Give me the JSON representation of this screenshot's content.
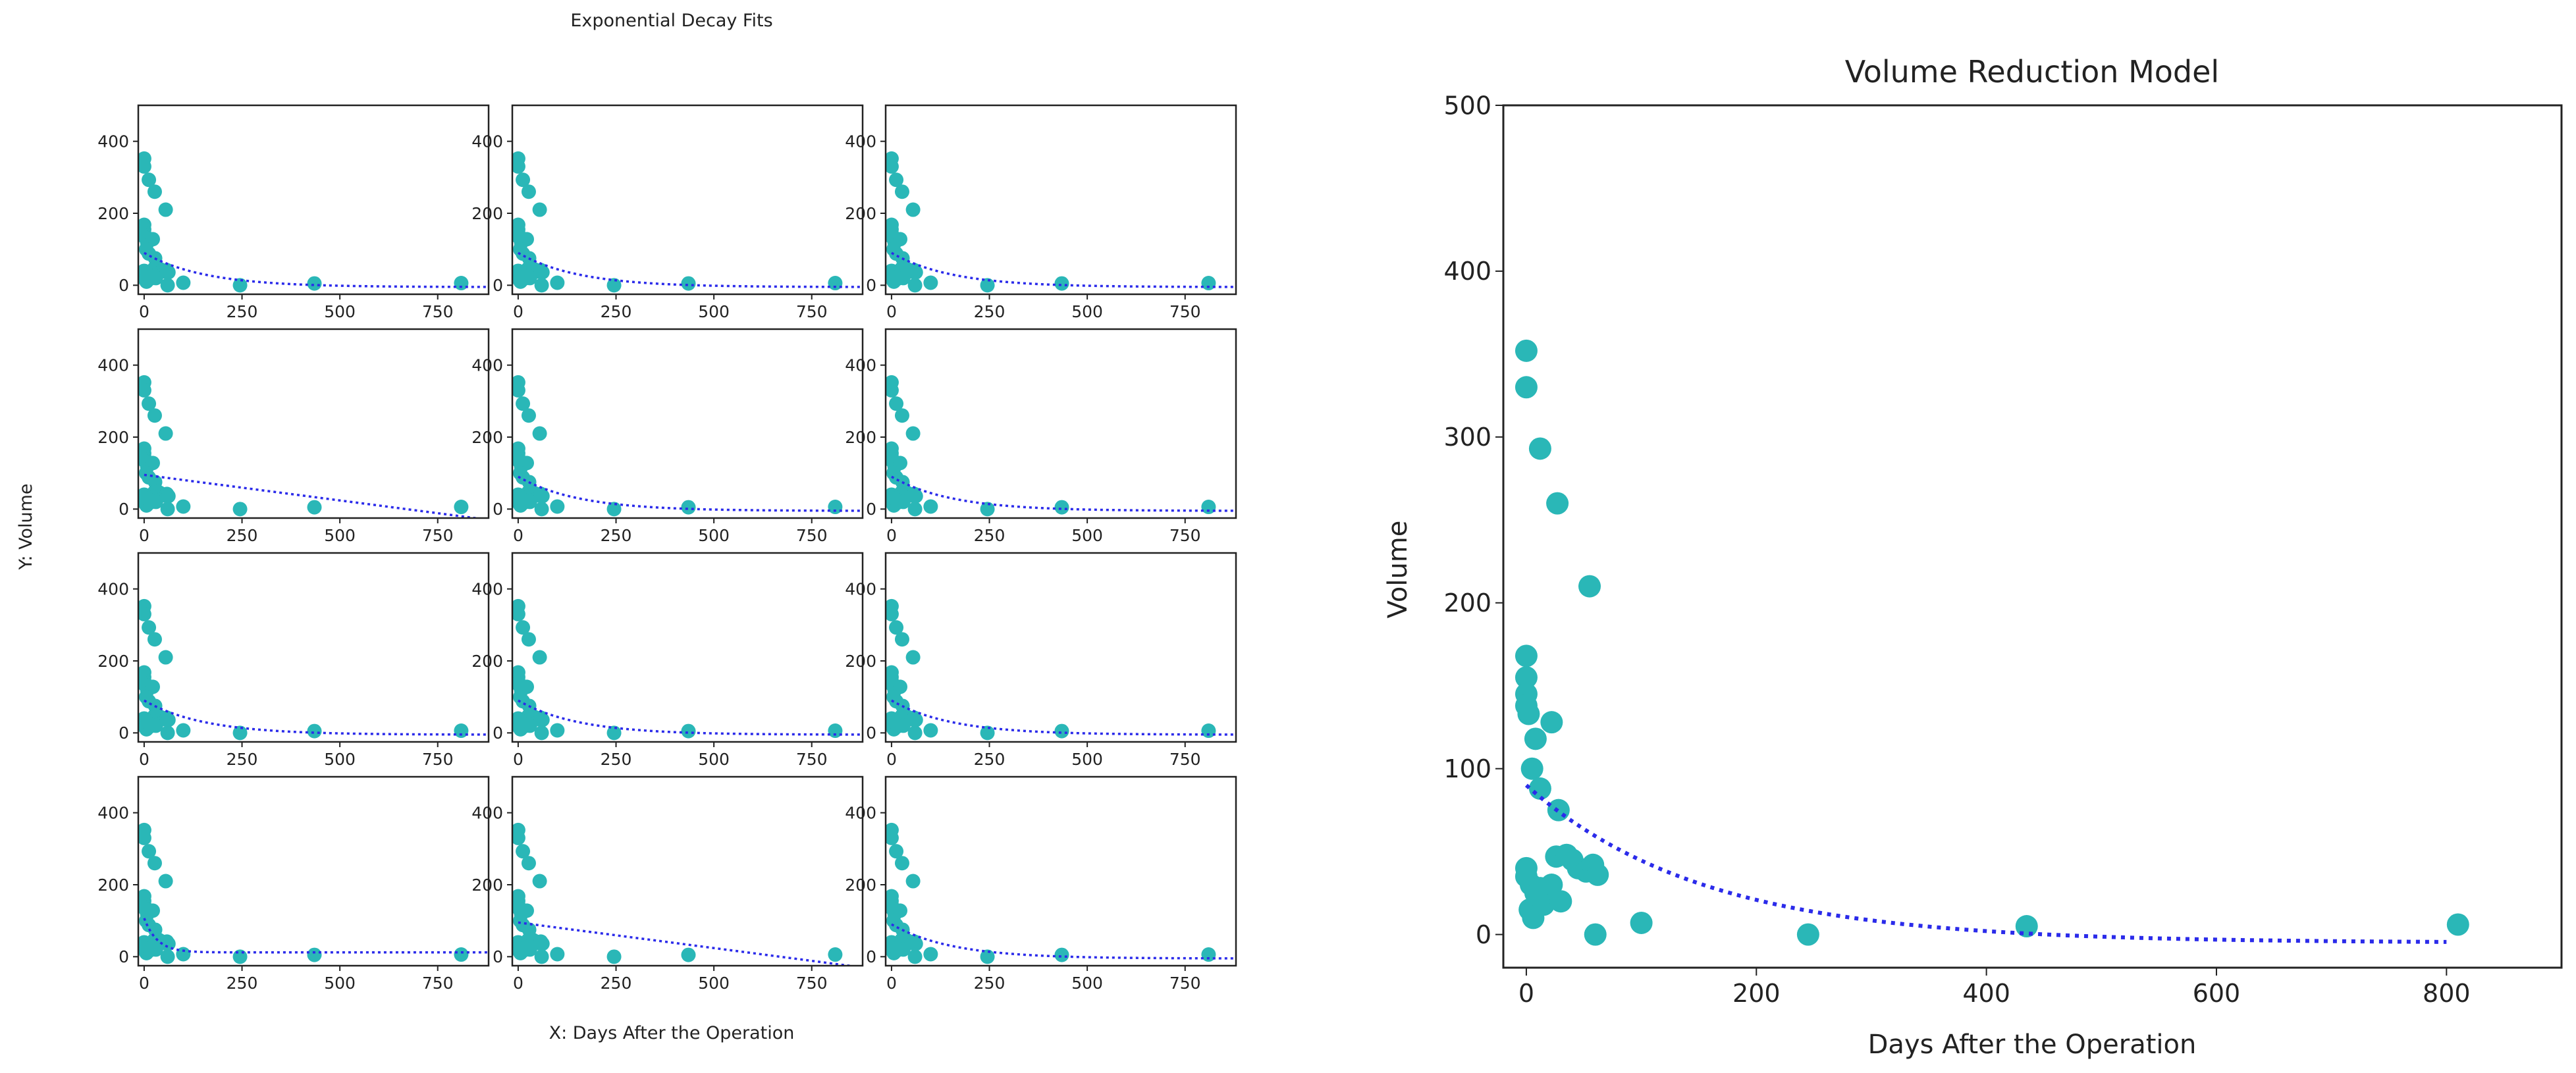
{
  "left_figure": {
    "title": "Exponential Decay Fits",
    "xlabel": "X: Days After the Operation",
    "ylabel": "Y: Volume"
  },
  "right_figure": {
    "title": "Volume Reduction Model",
    "xlabel": "Days After the Operation",
    "ylabel": "Volume"
  },
  "colors": {
    "points": "#2ab7b7",
    "fit": "#2b2bea",
    "axis": "#222222"
  },
  "chart_data": [
    {
      "type": "scatter",
      "role": "grid-of-fits",
      "rows": 4,
      "cols": 3,
      "xlim": [
        -15,
        880
      ],
      "ylim": [
        -25,
        500
      ],
      "xticks": [
        0,
        250,
        500,
        750
      ],
      "yticks": [
        0,
        200,
        400
      ],
      "points": [
        [
          0,
          352
        ],
        [
          0,
          330
        ],
        [
          12,
          293
        ],
        [
          27,
          260
        ],
        [
          55,
          210
        ],
        [
          0,
          168
        ],
        [
          0,
          155
        ],
        [
          0,
          145
        ],
        [
          0,
          138
        ],
        [
          2,
          133
        ],
        [
          8,
          118
        ],
        [
          22,
          128
        ],
        [
          5,
          100
        ],
        [
          12,
          88
        ],
        [
          28,
          75
        ],
        [
          0,
          40
        ],
        [
          0,
          35
        ],
        [
          4,
          30
        ],
        [
          8,
          25
        ],
        [
          12,
          28
        ],
        [
          18,
          22
        ],
        [
          22,
          30
        ],
        [
          26,
          47
        ],
        [
          35,
          48
        ],
        [
          40,
          45
        ],
        [
          45,
          40
        ],
        [
          52,
          38
        ],
        [
          58,
          42
        ],
        [
          62,
          36
        ],
        [
          3,
          15
        ],
        [
          6,
          10
        ],
        [
          15,
          18
        ],
        [
          30,
          20
        ],
        [
          60,
          0
        ],
        [
          100,
          7
        ],
        [
          245,
          0
        ],
        [
          435,
          5
        ],
        [
          810,
          6
        ]
      ],
      "fits": [
        {
          "kind": "exp",
          "a": 95,
          "b": 0.0065,
          "c": -5
        },
        {
          "kind": "exp",
          "a": 95,
          "b": 0.0065,
          "c": -5
        },
        {
          "kind": "exp",
          "a": 95,
          "b": 0.0065,
          "c": -5
        },
        {
          "kind": "linear",
          "m": -0.142,
          "c": 95
        },
        {
          "kind": "exp",
          "a": 95,
          "b": 0.0065,
          "c": -5
        },
        {
          "kind": "exp",
          "a": 95,
          "b": 0.0065,
          "c": -5
        },
        {
          "kind": "exp",
          "a": 95,
          "b": 0.0065,
          "c": -5
        },
        {
          "kind": "exp",
          "a": 95,
          "b": 0.0065,
          "c": -5
        },
        {
          "kind": "exp",
          "a": 95,
          "b": 0.0065,
          "c": -5
        },
        {
          "kind": "exp",
          "a": 95,
          "b": 0.03,
          "c": 12
        },
        {
          "kind": "linear",
          "m": -0.142,
          "c": 95
        },
        {
          "kind": "exp",
          "a": 95,
          "b": 0.0065,
          "c": -5
        }
      ]
    },
    {
      "type": "scatter",
      "role": "main",
      "xlim": [
        -20,
        900
      ],
      "ylim": [
        -20,
        500
      ],
      "xticks": [
        0,
        200,
        400,
        600,
        800
      ],
      "yticks": [
        0,
        100,
        200,
        300,
        400,
        500
      ],
      "points": [
        [
          0,
          352
        ],
        [
          0,
          330
        ],
        [
          12,
          293
        ],
        [
          27,
          260
        ],
        [
          55,
          210
        ],
        [
          0,
          168
        ],
        [
          0,
          155
        ],
        [
          0,
          145
        ],
        [
          0,
          138
        ],
        [
          2,
          133
        ],
        [
          8,
          118
        ],
        [
          22,
          128
        ],
        [
          5,
          100
        ],
        [
          12,
          88
        ],
        [
          28,
          75
        ],
        [
          0,
          40
        ],
        [
          0,
          35
        ],
        [
          4,
          30
        ],
        [
          8,
          25
        ],
        [
          12,
          28
        ],
        [
          18,
          22
        ],
        [
          22,
          30
        ],
        [
          26,
          47
        ],
        [
          35,
          48
        ],
        [
          40,
          45
        ],
        [
          45,
          40
        ],
        [
          52,
          38
        ],
        [
          58,
          42
        ],
        [
          62,
          36
        ],
        [
          3,
          15
        ],
        [
          6,
          10
        ],
        [
          15,
          18
        ],
        [
          30,
          20
        ],
        [
          60,
          0
        ],
        [
          100,
          7
        ],
        [
          245,
          0
        ],
        [
          435,
          5
        ],
        [
          810,
          6
        ]
      ],
      "fit": {
        "kind": "exp",
        "a": 95,
        "b": 0.0065,
        "c": -5,
        "x_range": [
          0,
          800
        ]
      }
    }
  ]
}
